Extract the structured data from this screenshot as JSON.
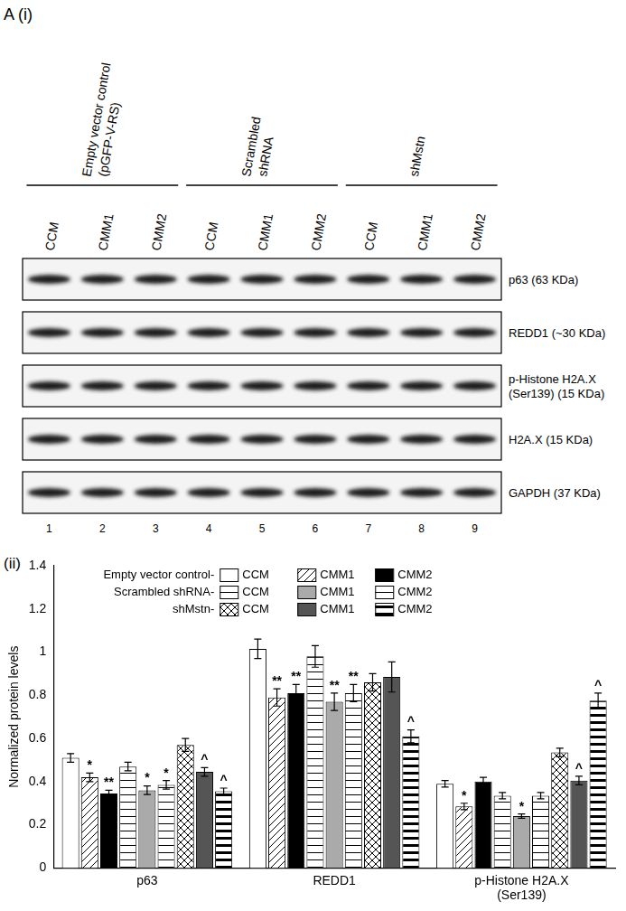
{
  "figure_label": "A",
  "blot": {
    "label": "(i)",
    "groups": [
      {
        "lines": [
          "Empty vector control",
          "(pGFP-V-RS)"
        ]
      },
      {
        "lines": [
          "Scrambled",
          "shRNA"
        ]
      },
      {
        "lines": [
          "shMstn"
        ]
      }
    ],
    "lanes": [
      "CCM",
      "CMM1",
      "CMM2"
    ],
    "proteins": [
      {
        "lines": [
          "p63 (63 KDa)"
        ]
      },
      {
        "lines": [
          "REDD1 (~30 KDa)"
        ]
      },
      {
        "lines": [
          "p-Histone H2A.X",
          "(Ser139) (15 KDa)"
        ]
      },
      {
        "lines": [
          "H2A.X (15 KDa)"
        ]
      },
      {
        "lines": [
          "GAPDH (37 KDa)"
        ]
      }
    ],
    "lane_numbers": [
      1,
      2,
      3,
      4,
      5,
      6,
      7,
      8,
      9
    ]
  },
  "chart_label": "(ii)",
  "chart_data": {
    "type": "bar",
    "ylabel": "Normalized protein levels",
    "categories": [
      "p63",
      "REDD1",
      "p-Histone H2A.X (Ser139)"
    ],
    "ylim": [
      0,
      1.4
    ],
    "yticks": [
      0,
      0.2,
      0.4,
      0.6,
      0.8,
      1,
      1.2,
      1.4
    ],
    "grid": false,
    "series": [
      {
        "group": "Empty vector control-",
        "name": "CCM",
        "color": "#ffffff",
        "values": [
          0.51,
          1.015,
          0.39
        ],
        "errors": [
          0.02,
          0.045,
          0.015
        ],
        "annotations": [
          null,
          null,
          null
        ]
      },
      {
        "group": "Empty vector control-",
        "name": "CMM1",
        "color": "#ffffff",
        "values": [
          0.42,
          0.79,
          0.285
        ],
        "errors": [
          0.02,
          0.04,
          0.015
        ],
        "annotations": [
          "*",
          "**",
          "*"
        ]
      },
      {
        "group": "Empty vector control-",
        "name": "CMM2",
        "color": "#000000",
        "values": [
          0.345,
          0.81,
          0.4
        ],
        "errors": [
          0.015,
          0.04,
          0.02
        ],
        "annotations": [
          "**",
          "**",
          null
        ]
      },
      {
        "group": "Scrambled shRNA-",
        "name": "CCM",
        "color": "#ffffff",
        "values": [
          0.47,
          0.98,
          0.335
        ],
        "errors": [
          0.02,
          0.05,
          0.015
        ],
        "annotations": [
          null,
          null,
          null
        ]
      },
      {
        "group": "Scrambled shRNA-",
        "name": "CMM1",
        "color": "#aaaaaa",
        "values": [
          0.36,
          0.77,
          0.24
        ],
        "errors": [
          0.02,
          0.04,
          0.01
        ],
        "annotations": [
          "*",
          "**",
          "*"
        ]
      },
      {
        "group": "Scrambled shRNA-",
        "name": "CMM2",
        "color": "#ffffff",
        "values": [
          0.385,
          0.81,
          0.335
        ],
        "errors": [
          0.02,
          0.04,
          0.015
        ],
        "annotations": [
          "*",
          "**",
          null
        ]
      },
      {
        "group": "shMstn-",
        "name": "CCM",
        "color": "#ffffff",
        "values": [
          0.57,
          0.86,
          0.535
        ],
        "errors": [
          0.03,
          0.04,
          0.02
        ],
        "annotations": [
          null,
          null,
          null
        ]
      },
      {
        "group": "shMstn-",
        "name": "CMM1",
        "color": "#555555",
        "values": [
          0.445,
          0.885,
          0.405
        ],
        "errors": [
          0.02,
          0.07,
          0.02
        ],
        "annotations": [
          "^",
          null,
          "^"
        ]
      },
      {
        "group": "shMstn-",
        "name": "CMM2",
        "color": "#ffffff",
        "values": [
          0.355,
          0.61,
          0.775
        ],
        "errors": [
          0.015,
          0.03,
          0.035
        ],
        "annotations": [
          "^",
          "^",
          "^"
        ]
      }
    ]
  }
}
